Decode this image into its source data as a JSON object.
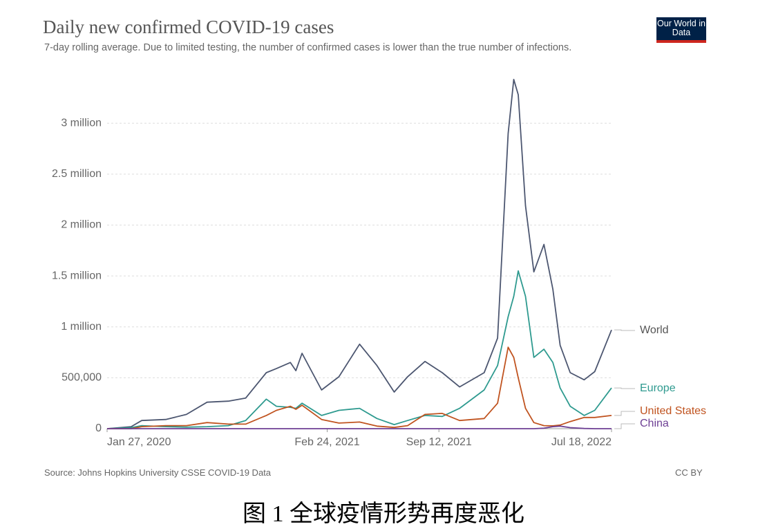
{
  "chart_data": {
    "type": "line",
    "title": "Daily new confirmed COVID-19 cases",
    "subtitle": "7-day rolling average. Due to limited testing, the number of confirmed cases is lower than the true number of infections.",
    "logo": "Our World in Data",
    "source": "Source: Johns Hopkins University CSSE COVID-19 Data",
    "license": "CC BY",
    "caption": "图 1  全球疫情形势再度恶化",
    "x": [
      "2020-01-27",
      "2020-03-10",
      "2020-03-29",
      "2020-05-11",
      "2020-06-17",
      "2020-07-24",
      "2020-08-31",
      "2020-10-01",
      "2020-11-07",
      "2020-11-25",
      "2020-12-20",
      "2020-12-30",
      "2021-01-10",
      "2021-02-14",
      "2021-03-17",
      "2021-04-23",
      "2021-05-24",
      "2021-06-24",
      "2021-07-18",
      "2021-08-18",
      "2021-09-18",
      "2021-10-19",
      "2021-12-02",
      "2021-12-26",
      "2022-01-14",
      "2022-01-24",
      "2022-02-01",
      "2022-02-14",
      "2022-03-01",
      "2022-03-19",
      "2022-04-04",
      "2022-04-17",
      "2022-05-05",
      "2022-05-30",
      "2022-06-18",
      "2022-07-18"
    ],
    "series": [
      {
        "name": "World",
        "color": "#4c5670",
        "values": [
          0,
          20000,
          80000,
          90000,
          140000,
          260000,
          270000,
          300000,
          550000,
          590000,
          650000,
          570000,
          740000,
          380000,
          510000,
          830000,
          620000,
          360000,
          510000,
          660000,
          550000,
          410000,
          550000,
          890000,
          2900000,
          3430000,
          3280000,
          2190000,
          1540000,
          1810000,
          1370000,
          820000,
          550000,
          480000,
          560000,
          970000
        ]
      },
      {
        "name": "Europe",
        "color": "#2e9a8f",
        "values": [
          0,
          10000,
          30000,
          20000,
          15000,
          20000,
          30000,
          80000,
          290000,
          220000,
          210000,
          200000,
          250000,
          130000,
          180000,
          200000,
          100000,
          40000,
          80000,
          130000,
          120000,
          200000,
          380000,
          620000,
          1100000,
          1300000,
          1550000,
          1300000,
          700000,
          780000,
          650000,
          400000,
          220000,
          130000,
          180000,
          400000
        ]
      },
      {
        "name": "United States",
        "color": "#c0531f",
        "values": [
          0,
          0,
          20000,
          30000,
          30000,
          60000,
          45000,
          45000,
          130000,
          180000,
          220000,
          190000,
          230000,
          90000,
          55000,
          65000,
          25000,
          12000,
          30000,
          140000,
          150000,
          80000,
          100000,
          250000,
          800000,
          700000,
          500000,
          200000,
          60000,
          30000,
          28000,
          35000,
          70000,
          110000,
          110000,
          130000
        ]
      },
      {
        "name": "China",
        "color": "#6d3f94",
        "values": [
          0,
          0,
          0,
          0,
          0,
          0,
          0,
          0,
          0,
          0,
          0,
          0,
          0,
          0,
          0,
          0,
          0,
          0,
          0,
          0,
          0,
          0,
          0,
          0,
          0,
          0,
          0,
          0,
          0,
          5000,
          20000,
          25000,
          10000,
          2000,
          0,
          0
        ]
      }
    ],
    "ylim": [
      0,
      3450000
    ],
    "yticks": [
      0,
      {
        "value": 500000,
        "label": "500,000"
      },
      {
        "value": 1000000,
        "label": "1 million"
      },
      {
        "value": 1500000,
        "label": "1.5 million"
      },
      {
        "value": 2000000,
        "label": "2 million"
      },
      {
        "value": 2500000,
        "label": "2.5 million"
      },
      {
        "value": 3000000,
        "label": "3 million"
      }
    ],
    "xlim": [
      "2020-01-27",
      "2022-07-18"
    ],
    "xticks": [
      {
        "value": "2020-01-27",
        "label": "Jan 27, 2020"
      },
      {
        "value": "2021-02-24",
        "label": "Feb 24, 2021"
      },
      {
        "value": "2021-09-12",
        "label": "Sep 12, 2021"
      },
      {
        "value": "2022-07-18",
        "label": "Jul 18, 2022"
      }
    ],
    "grid": true
  }
}
